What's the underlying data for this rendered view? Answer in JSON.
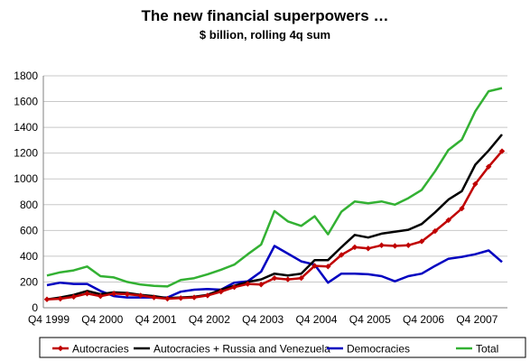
{
  "chart_data": {
    "type": "line",
    "title": "The new financial superpowers …",
    "subtitle": "$ billion, rolling 4q sum",
    "xlabel": "",
    "ylabel": "",
    "ylim": [
      0,
      1800
    ],
    "yticks": [
      0,
      200,
      400,
      600,
      800,
      1000,
      1200,
      1400,
      1600,
      1800
    ],
    "x": [
      "Q4 1999",
      "Q1 2000",
      "Q2 2000",
      "Q3 2000",
      "Q4 2000",
      "Q1 2001",
      "Q2 2001",
      "Q3 2001",
      "Q4 2001",
      "Q1 2002",
      "Q2 2002",
      "Q3 2002",
      "Q4 2002",
      "Q1 2003",
      "Q2 2003",
      "Q3 2003",
      "Q4 2003",
      "Q1 2004",
      "Q2 2004",
      "Q3 2004",
      "Q4 2004",
      "Q1 2005",
      "Q2 2005",
      "Q3 2005",
      "Q4 2005",
      "Q1 2006",
      "Q2 2006",
      "Q3 2006",
      "Q4 2006",
      "Q1 2007",
      "Q2 2007",
      "Q3 2007",
      "Q4 2007",
      "Q1 2008",
      "Q2 2008"
    ],
    "xtick_labels": [
      "Q4 1999",
      "Q4 2000",
      "Q4 2001",
      "Q4 2002",
      "Q4 2003",
      "Q4 2004",
      "Q4 2005",
      "Q4 2006",
      "Q4 2007"
    ],
    "legend_position": "bottom",
    "grid": "horizontal",
    "series": [
      {
        "name": "Autocracies",
        "color": "#c00000",
        "marker": "diamond",
        "values": [
          65,
          70,
          85,
          110,
          90,
          110,
          105,
          95,
          80,
          70,
          75,
          80,
          95,
          125,
          160,
          185,
          180,
          230,
          220,
          230,
          325,
          320,
          410,
          470,
          460,
          485,
          480,
          485,
          515,
          595,
          680,
          770,
          960,
          1095,
          1215
        ]
      },
      {
        "name": "Autocracies + Russia and Venezuela",
        "color": "#000000",
        "values": [
          65,
          80,
          100,
          130,
          105,
          120,
          115,
          100,
          90,
          75,
          80,
          85,
          100,
          140,
          170,
          200,
          220,
          265,
          250,
          265,
          370,
          370,
          470,
          565,
          545,
          575,
          590,
          605,
          650,
          740,
          840,
          905,
          1110,
          1220,
          1345
        ]
      },
      {
        "name": "Democracies",
        "color": "#0000c0",
        "values": [
          175,
          195,
          185,
          185,
          130,
          90,
          80,
          80,
          80,
          80,
          125,
          140,
          145,
          140,
          195,
          205,
          280,
          480,
          420,
          360,
          335,
          195,
          265,
          265,
          260,
          245,
          205,
          245,
          265,
          325,
          380,
          395,
          415,
          445,
          355
        ]
      },
      {
        "name": "Total",
        "color": "#33b133",
        "values": [
          250,
          275,
          290,
          320,
          245,
          235,
          200,
          180,
          170,
          165,
          215,
          230,
          260,
          295,
          335,
          415,
          490,
          750,
          670,
          635,
          710,
          570,
          745,
          825,
          810,
          825,
          800,
          850,
          915,
          1060,
          1225,
          1305,
          1525,
          1680,
          1705
        ]
      }
    ]
  }
}
